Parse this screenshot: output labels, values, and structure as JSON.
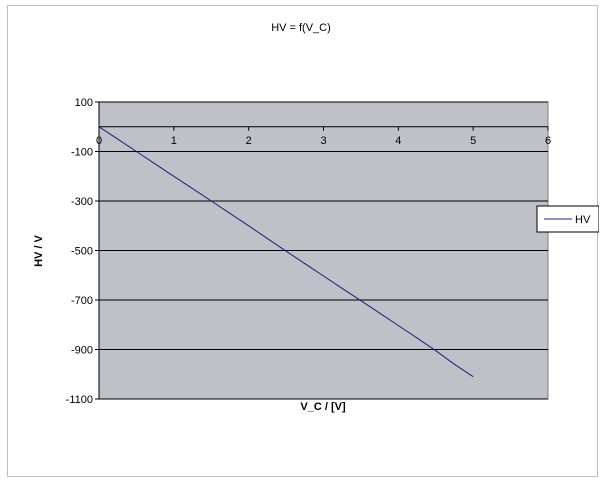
{
  "chart_data": {
    "type": "line",
    "title": "HV = f(V_C)",
    "xlabel": "V_C / [V]",
    "ylabel": "HV / V",
    "xlim": [
      0,
      6
    ],
    "ylim": [
      -1100,
      100
    ],
    "xticks": [
      0,
      1,
      2,
      3,
      4,
      5,
      6
    ],
    "yticks": [
      100,
      -100,
      -300,
      -500,
      -700,
      -900,
      -1100
    ],
    "grid": "horizontal",
    "legend": "right",
    "series": [
      {
        "name": "HV",
        "color": "#1f1f7a",
        "x": [
          0,
          0.25,
          0.5,
          0.75,
          1,
          1.25,
          1.5,
          1.75,
          2,
          2.25,
          2.5,
          2.75,
          3,
          3.25,
          3.5,
          3.75,
          4,
          4.25,
          4.5,
          4.75,
          5
        ],
        "y": [
          0,
          -50,
          -100,
          -150,
          -200,
          -250,
          -300,
          -350,
          -400,
          -452,
          -503,
          -553,
          -603,
          -653,
          -703,
          -753,
          -803,
          -853,
          -905,
          -960,
          -1010
        ]
      }
    ]
  }
}
